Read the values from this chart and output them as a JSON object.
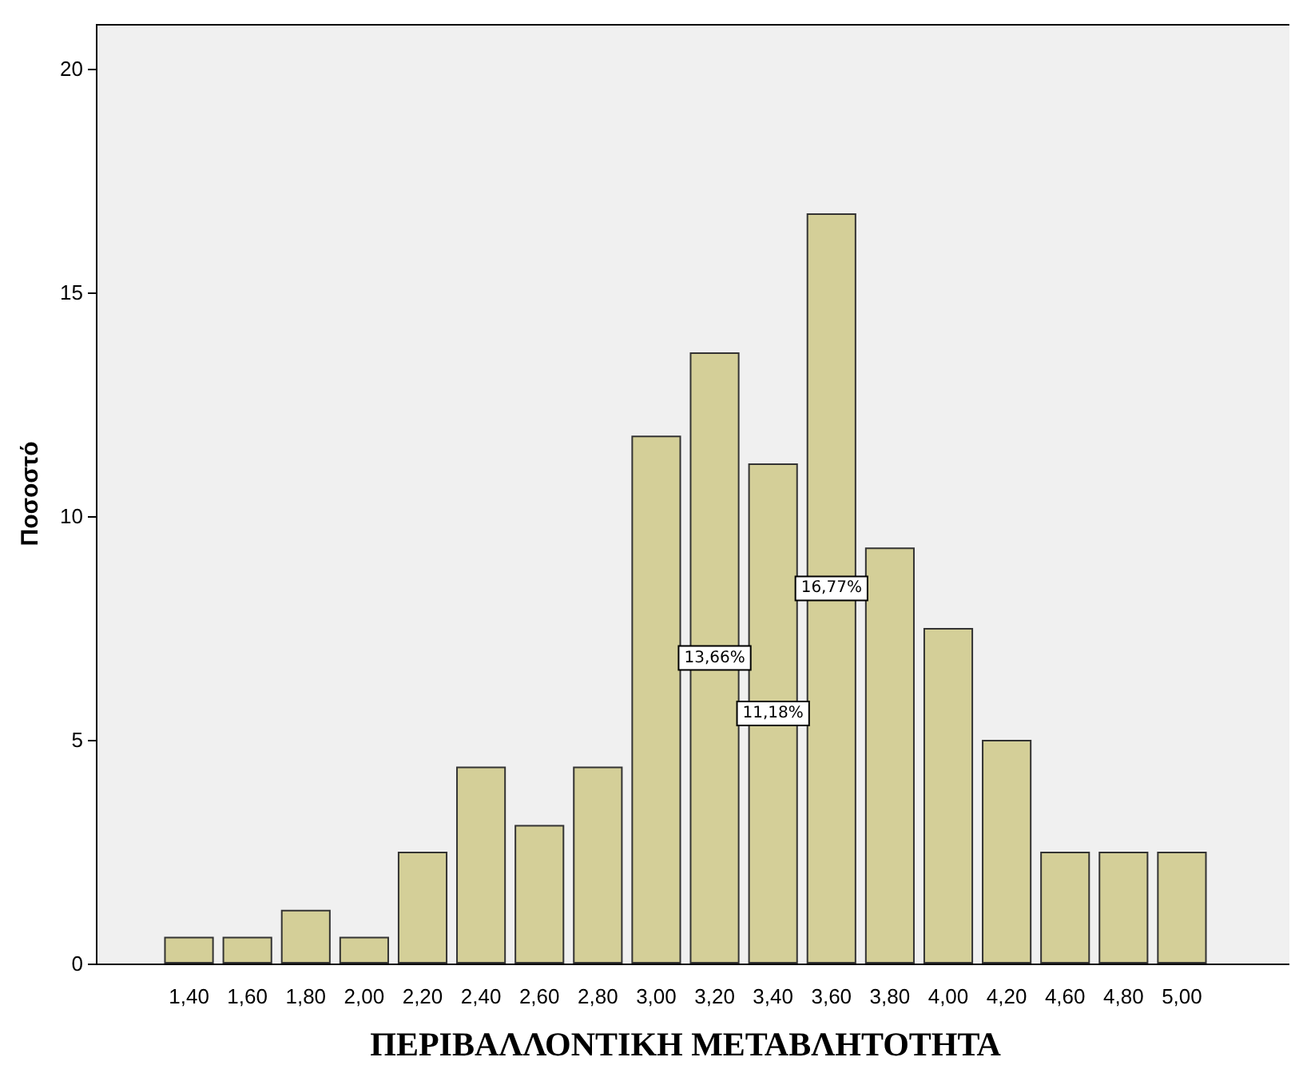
{
  "chart_data": {
    "type": "bar",
    "xlabel": "ΠΕΡΙΒΑΛΛΟΝΤΙΚΗ ΜΕΤΑΒΛΗΤΟΤΗΤΑ",
    "ylabel": "Ποσοστό",
    "categories": [
      "1,40",
      "1,60",
      "1,80",
      "2,00",
      "2,20",
      "2,40",
      "2,60",
      "2,80",
      "3,00",
      "3,20",
      "3,40",
      "3,60",
      "3,80",
      "4,00",
      "4,20",
      "4,60",
      "4,80",
      "5,00"
    ],
    "values": [
      0.6,
      0.6,
      1.2,
      0.6,
      2.5,
      4.4,
      3.1,
      4.4,
      11.8,
      13.66,
      11.18,
      16.77,
      9.3,
      7.5,
      5.0,
      2.5,
      2.5,
      2.5
    ],
    "value_labels": [
      null,
      null,
      null,
      null,
      null,
      null,
      null,
      null,
      null,
      "13,66%",
      "11,18%",
      "16,77%",
      null,
      null,
      null,
      null,
      null,
      null
    ],
    "color": "#d4cf98",
    "ylim": [
      0,
      21
    ],
    "yticks": [
      0,
      5,
      10,
      15,
      20
    ],
    "grid": false
  }
}
